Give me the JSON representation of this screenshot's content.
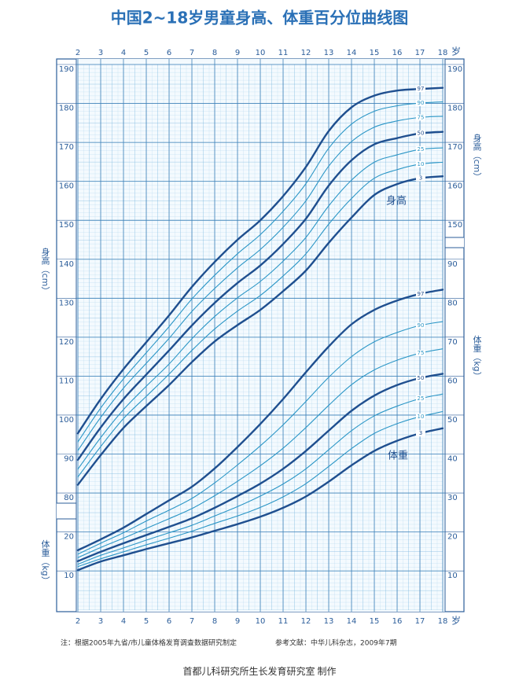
{
  "chart_data": {
    "type": "line",
    "title": "中国2~18岁男童身高、体重百分位曲线图",
    "x": [
      2,
      3,
      4,
      5,
      6,
      7,
      8,
      9,
      10,
      11,
      12,
      13,
      14,
      15,
      16,
      17,
      18
    ],
    "xlim": [
      2,
      18
    ],
    "xticks": [
      2,
      3,
      4,
      5,
      6,
      7,
      8,
      9,
      10,
      11,
      12,
      13,
      14,
      15,
      16,
      17,
      18
    ],
    "x_unit": "岁",
    "ylabel": "身高（cm）",
    "y2label": "体重（kg）",
    "ylim": [
      50,
      190
    ],
    "yticks": [
      80,
      90,
      100,
      110,
      120,
      130,
      140,
      150,
      160,
      170,
      180,
      190
    ],
    "yticks_right": [
      150,
      160,
      170,
      180,
      190
    ],
    "y2lim": [
      0,
      140
    ],
    "y2ticks": [
      10,
      20,
      30,
      40,
      50,
      60,
      70,
      80,
      90
    ],
    "y2ticks_left": [
      10,
      20
    ],
    "grid": true,
    "height_label": "身高",
    "weight_label": "体重",
    "series": [
      {
        "name": "97",
        "color": "#1f4f8f",
        "width": 2.4,
        "values": [
          95.3,
          104.1,
          111.8,
          118.7,
          125.6,
          132.9,
          139.3,
          145.0,
          150.0,
          156.2,
          163.7,
          172.9,
          179.0,
          182.0,
          183.3,
          183.7,
          184.0
        ]
      },
      {
        "name": "90",
        "color": "#2b96c6",
        "width": 1.1,
        "values": [
          93.1,
          101.8,
          109.3,
          116.0,
          122.7,
          129.8,
          135.9,
          141.4,
          146.3,
          152.3,
          159.4,
          168.5,
          174.7,
          178.0,
          179.4,
          180.1,
          180.4
        ]
      },
      {
        "name": "75",
        "color": "#2b96c6",
        "width": 1.1,
        "values": [
          90.9,
          99.4,
          106.9,
          113.3,
          119.7,
          126.6,
          132.5,
          137.8,
          142.5,
          148.2,
          155.0,
          163.9,
          170.2,
          173.9,
          175.5,
          176.4,
          176.7
        ]
      },
      {
        "name": "50",
        "color": "#1f4f8f",
        "width": 2.4,
        "values": [
          88.5,
          96.8,
          104.1,
          110.4,
          116.6,
          123.0,
          128.8,
          133.9,
          138.4,
          143.9,
          150.4,
          158.9,
          165.4,
          169.5,
          171.1,
          172.3,
          172.7
        ]
      },
      {
        "name": "25",
        "color": "#2b96c6",
        "width": 1.1,
        "values": [
          86.1,
          94.2,
          101.4,
          107.4,
          113.1,
          119.6,
          125.3,
          130.1,
          134.3,
          139.5,
          145.6,
          153.7,
          160.3,
          164.9,
          166.8,
          168.2,
          168.6
        ]
      },
      {
        "name": "10",
        "color": "#2b96c6",
        "width": 1.1,
        "values": [
          84.1,
          91.9,
          99.1,
          104.8,
          110.5,
          116.6,
          122.1,
          126.7,
          130.7,
          135.7,
          141.4,
          149.0,
          155.6,
          160.8,
          163.0,
          164.4,
          164.9
        ]
      },
      {
        "name": "3",
        "color": "#1f4f8f",
        "width": 2.4,
        "values": [
          82.1,
          89.7,
          96.7,
          102.3,
          107.7,
          113.6,
          118.9,
          123.1,
          127.0,
          131.8,
          137.1,
          144.2,
          150.7,
          156.5,
          159.3,
          160.8,
          161.3
        ]
      },
      {
        "name": "97",
        "axis": "y2",
        "color": "#1f4f8f",
        "width": 2.4,
        "values": [
          15.3,
          18.1,
          21.1,
          24.6,
          28.1,
          31.6,
          36.3,
          41.8,
          47.7,
          54.1,
          61.0,
          67.6,
          73.3,
          77.0,
          79.4,
          81.1,
          82.2
        ]
      },
      {
        "name": "90",
        "axis": "y2",
        "color": "#2b96c6",
        "width": 1.1,
        "values": [
          14.3,
          17.1,
          19.8,
          22.8,
          25.6,
          28.6,
          32.6,
          37.2,
          42.1,
          47.5,
          53.5,
          59.7,
          65.0,
          68.8,
          71.2,
          73.0,
          74.0
        ]
      },
      {
        "name": "75",
        "axis": "y2",
        "color": "#2b96c6",
        "width": 1.1,
        "values": [
          13.4,
          16.0,
          18.4,
          20.9,
          23.4,
          26.0,
          29.3,
          33.0,
          37.0,
          41.5,
          46.8,
          52.5,
          57.8,
          61.6,
          64.1,
          65.9,
          67.0
        ]
      },
      {
        "name": "50",
        "axis": "y2",
        "color": "#1f4f8f",
        "width": 2.4,
        "values": [
          12.5,
          14.9,
          17.1,
          19.2,
          21.3,
          23.5,
          26.2,
          29.2,
          32.4,
          36.2,
          40.8,
          46.0,
          51.1,
          55.0,
          57.7,
          59.5,
          60.6
        ]
      },
      {
        "name": "25",
        "axis": "y2",
        "color": "#2b96c6",
        "width": 1.1,
        "values": [
          11.7,
          14.0,
          15.9,
          17.9,
          19.8,
          21.7,
          24.1,
          26.5,
          29.2,
          32.3,
          36.2,
          41.1,
          46.0,
          49.8,
          52.3,
          54.2,
          55.4
        ]
      },
      {
        "name": "10",
        "axis": "y2",
        "color": "#2b96c6",
        "width": 1.1,
        "values": [
          11.1,
          13.1,
          14.9,
          16.7,
          18.4,
          20.2,
          22.2,
          24.1,
          26.3,
          29.0,
          32.4,
          36.8,
          41.4,
          45.3,
          47.8,
          49.6,
          50.9
        ]
      },
      {
        "name": "3",
        "axis": "y2",
        "color": "#1f4f8f",
        "width": 2.4,
        "values": [
          10.2,
          12.4,
          14.0,
          15.6,
          17.1,
          18.6,
          20.3,
          22.0,
          23.9,
          26.2,
          29.1,
          32.9,
          37.1,
          40.8,
          43.4,
          45.3,
          46.6
        ]
      }
    ]
  },
  "footer": {
    "note": "注：根据2005年九省/市儿童体格发育调查数据研究制定",
    "reference": "参考文献：中华儿科杂志，2009年7期",
    "credit": "首都儿科研究所生长发育研究室  制作"
  }
}
